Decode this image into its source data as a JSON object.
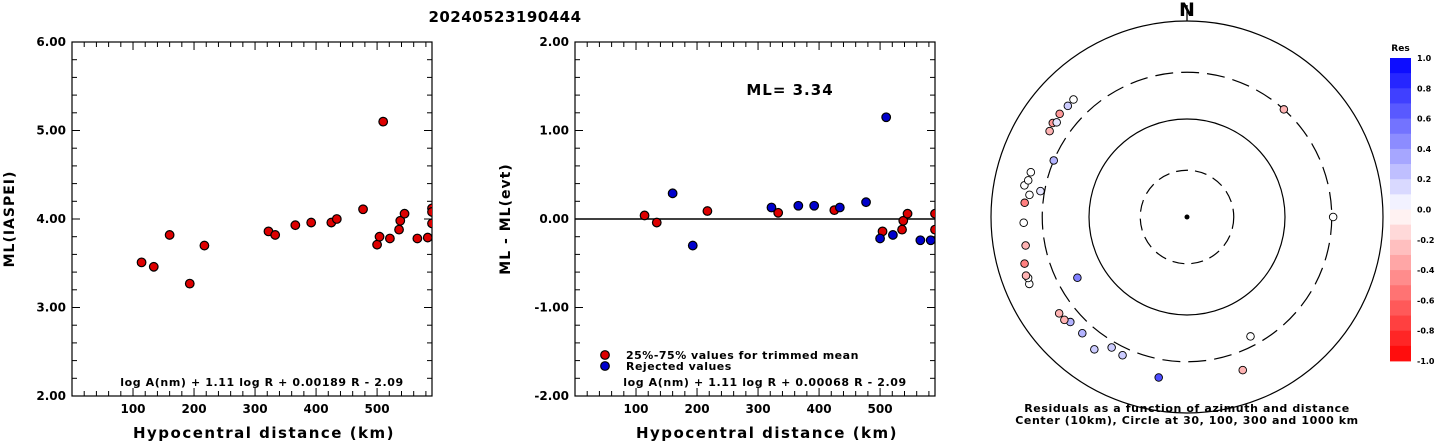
{
  "figure": {
    "title": "20240523190444"
  },
  "chart_data": [
    {
      "type": "scatter",
      "id": "ml-vs-distance",
      "xlabel": "Hypocentral distance (km)",
      "ylabel": "ML(IASPEI)",
      "xlim": [
        0,
        590
      ],
      "ylim": [
        2.0,
        6.0
      ],
      "x_ticks": [
        100,
        200,
        300,
        400,
        500
      ],
      "y_ticks": [
        "2.00",
        "3.00",
        "4.00",
        "5.00",
        "6.00"
      ],
      "formula": "log A(nm) + 1.11 log R + 0.00189 R - 2.09",
      "series": [
        {
          "color": "#dd0000",
          "points": [
            [
              114,
              3.51
            ],
            [
              134,
              3.46
            ],
            [
              160,
              3.82
            ],
            [
              193,
              3.27
            ],
            [
              217,
              3.7
            ],
            [
              322,
              3.86
            ],
            [
              333,
              3.82
            ],
            [
              366,
              3.93
            ],
            [
              392,
              3.96
            ],
            [
              425,
              3.96
            ],
            [
              434,
              4.0
            ],
            [
              477,
              4.11
            ],
            [
              500,
              3.71
            ],
            [
              504,
              3.8
            ],
            [
              510,
              5.1
            ],
            [
              521,
              3.78
            ],
            [
              536,
              3.88
            ],
            [
              538,
              3.98
            ],
            [
              545,
              4.06
            ],
            [
              566,
              3.78
            ],
            [
              583,
              3.79
            ],
            [
              590,
              4.12
            ],
            [
              590,
              4.08
            ],
            [
              590,
              3.95
            ]
          ]
        }
      ]
    },
    {
      "type": "scatter",
      "id": "residual-vs-distance",
      "xlabel": "Hypocentral distance (km)",
      "ylabel": "ML - ML(evt)",
      "xlim": [
        0,
        590
      ],
      "ylim": [
        -2.0,
        2.0
      ],
      "x_ticks": [
        100,
        200,
        300,
        400,
        500
      ],
      "y_ticks": [
        "-2.00",
        "-1.00",
        "0.00",
        "1.00",
        "2.00"
      ],
      "annotation": "ML= 3.34",
      "formula": "log A(nm) + 1.11 log R + 0.00068 R - 2.09",
      "legend": [
        {
          "label": "25%-75% values for trimmed mean",
          "color": "#dd0000"
        },
        {
          "label": "Rejected values",
          "color": "#0000cc"
        }
      ],
      "series": [
        {
          "name": "25%-75% values for trimmed mean",
          "color": "#dd0000",
          "points": [
            [
              114,
              0.04
            ],
            [
              134,
              -0.04
            ],
            [
              217,
              0.09
            ],
            [
              333,
              0.07
            ],
            [
              425,
              0.1
            ],
            [
              504,
              -0.14
            ],
            [
              536,
              -0.12
            ],
            [
              538,
              -0.02
            ],
            [
              545,
              0.06
            ],
            [
              590,
              0.06
            ],
            [
              590,
              -0.12
            ]
          ]
        },
        {
          "name": "Rejected values",
          "color": "#0000cc",
          "points": [
            [
              160,
              0.29
            ],
            [
              193,
              -0.3
            ],
            [
              322,
              0.13
            ],
            [
              366,
              0.15
            ],
            [
              392,
              0.15
            ],
            [
              434,
              0.13
            ],
            [
              477,
              0.19
            ],
            [
              500,
              -0.22
            ],
            [
              510,
              1.15
            ],
            [
              521,
              -0.18
            ],
            [
              566,
              -0.24
            ],
            [
              583,
              -0.24
            ]
          ]
        }
      ]
    },
    {
      "type": "polar-scatter",
      "id": "azimuth-residual-map",
      "north_label": "N",
      "caption_line1": "Residuals as a function of azimuth and distance",
      "caption_line2": "Center (10km), Circle at 30, 100, 300 and 1000 km",
      "rings_km": [
        30,
        100,
        300,
        1000
      ],
      "points_az_dist_res": [
        [
          42,
          300,
          -0.3
        ],
        [
          90,
          310,
          0.0
        ],
        [
          152,
          240,
          0.0
        ],
        [
          160,
          460,
          -0.3
        ],
        [
          190,
          460,
          0.7
        ],
        [
          205,
          360,
          0.2
        ],
        [
          210,
          345,
          0.2
        ],
        [
          215,
          445,
          0.2
        ],
        [
          222,
          395,
          0.3
        ],
        [
          228,
          400,
          0.3
        ],
        [
          230,
          430,
          -0.3
        ],
        [
          233,
          430,
          -0.3
        ],
        [
          241,
          190,
          0.5
        ],
        [
          247,
          560,
          0.0
        ],
        [
          249,
          545,
          0.0
        ],
        [
          250,
          560,
          -0.3
        ],
        [
          254,
          530,
          -0.5
        ],
        [
          260,
          470,
          -0.3
        ],
        [
          268,
          465,
          0.0
        ],
        [
          275,
          460,
          -0.5
        ],
        [
          278,
          420,
          0.0
        ],
        [
          281,
          490,
          0.0
        ],
        [
          283,
          460,
          0.0
        ],
        [
          286,
          455,
          0.0
        ],
        [
          280,
          330,
          0.1
        ],
        [
          293,
          300,
          0.3
        ],
        [
          302,
          450,
          -0.3
        ],
        [
          305,
          470,
          -0.4
        ],
        [
          306,
          440,
          0.1
        ],
        [
          309,
          470,
          -0.4
        ],
        [
          313,
          460,
          0.2
        ],
        [
          316,
          465,
          0.0
        ]
      ]
    }
  ],
  "colorbar": {
    "title": "Res",
    "ticks": [
      "1.0",
      "0.8",
      "0.6",
      "0.4",
      "0.2",
      "0.0",
      "-0.2",
      "-0.4",
      "-0.6",
      "-0.8",
      "-1.0"
    ]
  }
}
